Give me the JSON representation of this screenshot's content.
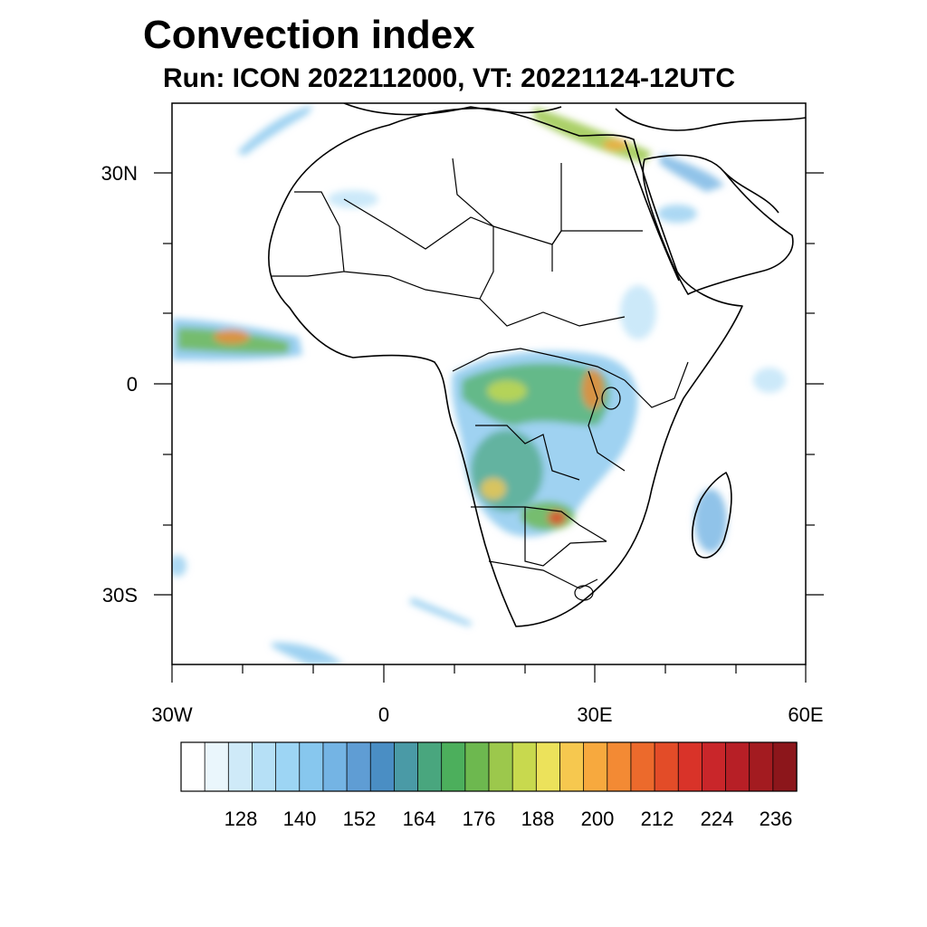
{
  "title": "Convection index",
  "subtitle": "Run: ICON 2022112000,  VT: 20221124-12UTC",
  "axes": {
    "lon_labels": [
      "30W",
      "0",
      "30E",
      "60E"
    ],
    "lat_labels": [
      "30N",
      "0",
      "30S"
    ]
  },
  "colorbar": {
    "labels": [
      "128",
      "140",
      "152",
      "164",
      "176",
      "188",
      "200",
      "212",
      "224",
      "236"
    ],
    "colors": [
      "#ffffff",
      "#eaf6fc",
      "#cfeaf8",
      "#b6e0f6",
      "#9dd5f4",
      "#87c7ee",
      "#74b4e4",
      "#5f9dd4",
      "#4a8ec4",
      "#4a9aa6",
      "#49a67e",
      "#4caf5c",
      "#6db84f",
      "#9cc84c",
      "#c8d94e",
      "#ece25b",
      "#f6c84f",
      "#f7a93e",
      "#f38a34",
      "#ec6a2c",
      "#e34c28",
      "#d93329",
      "#c9262a",
      "#b71f26",
      "#a31b20",
      "#8c161b"
    ]
  },
  "colors": {
    "coast": "#000000",
    "frame": "#000000"
  }
}
